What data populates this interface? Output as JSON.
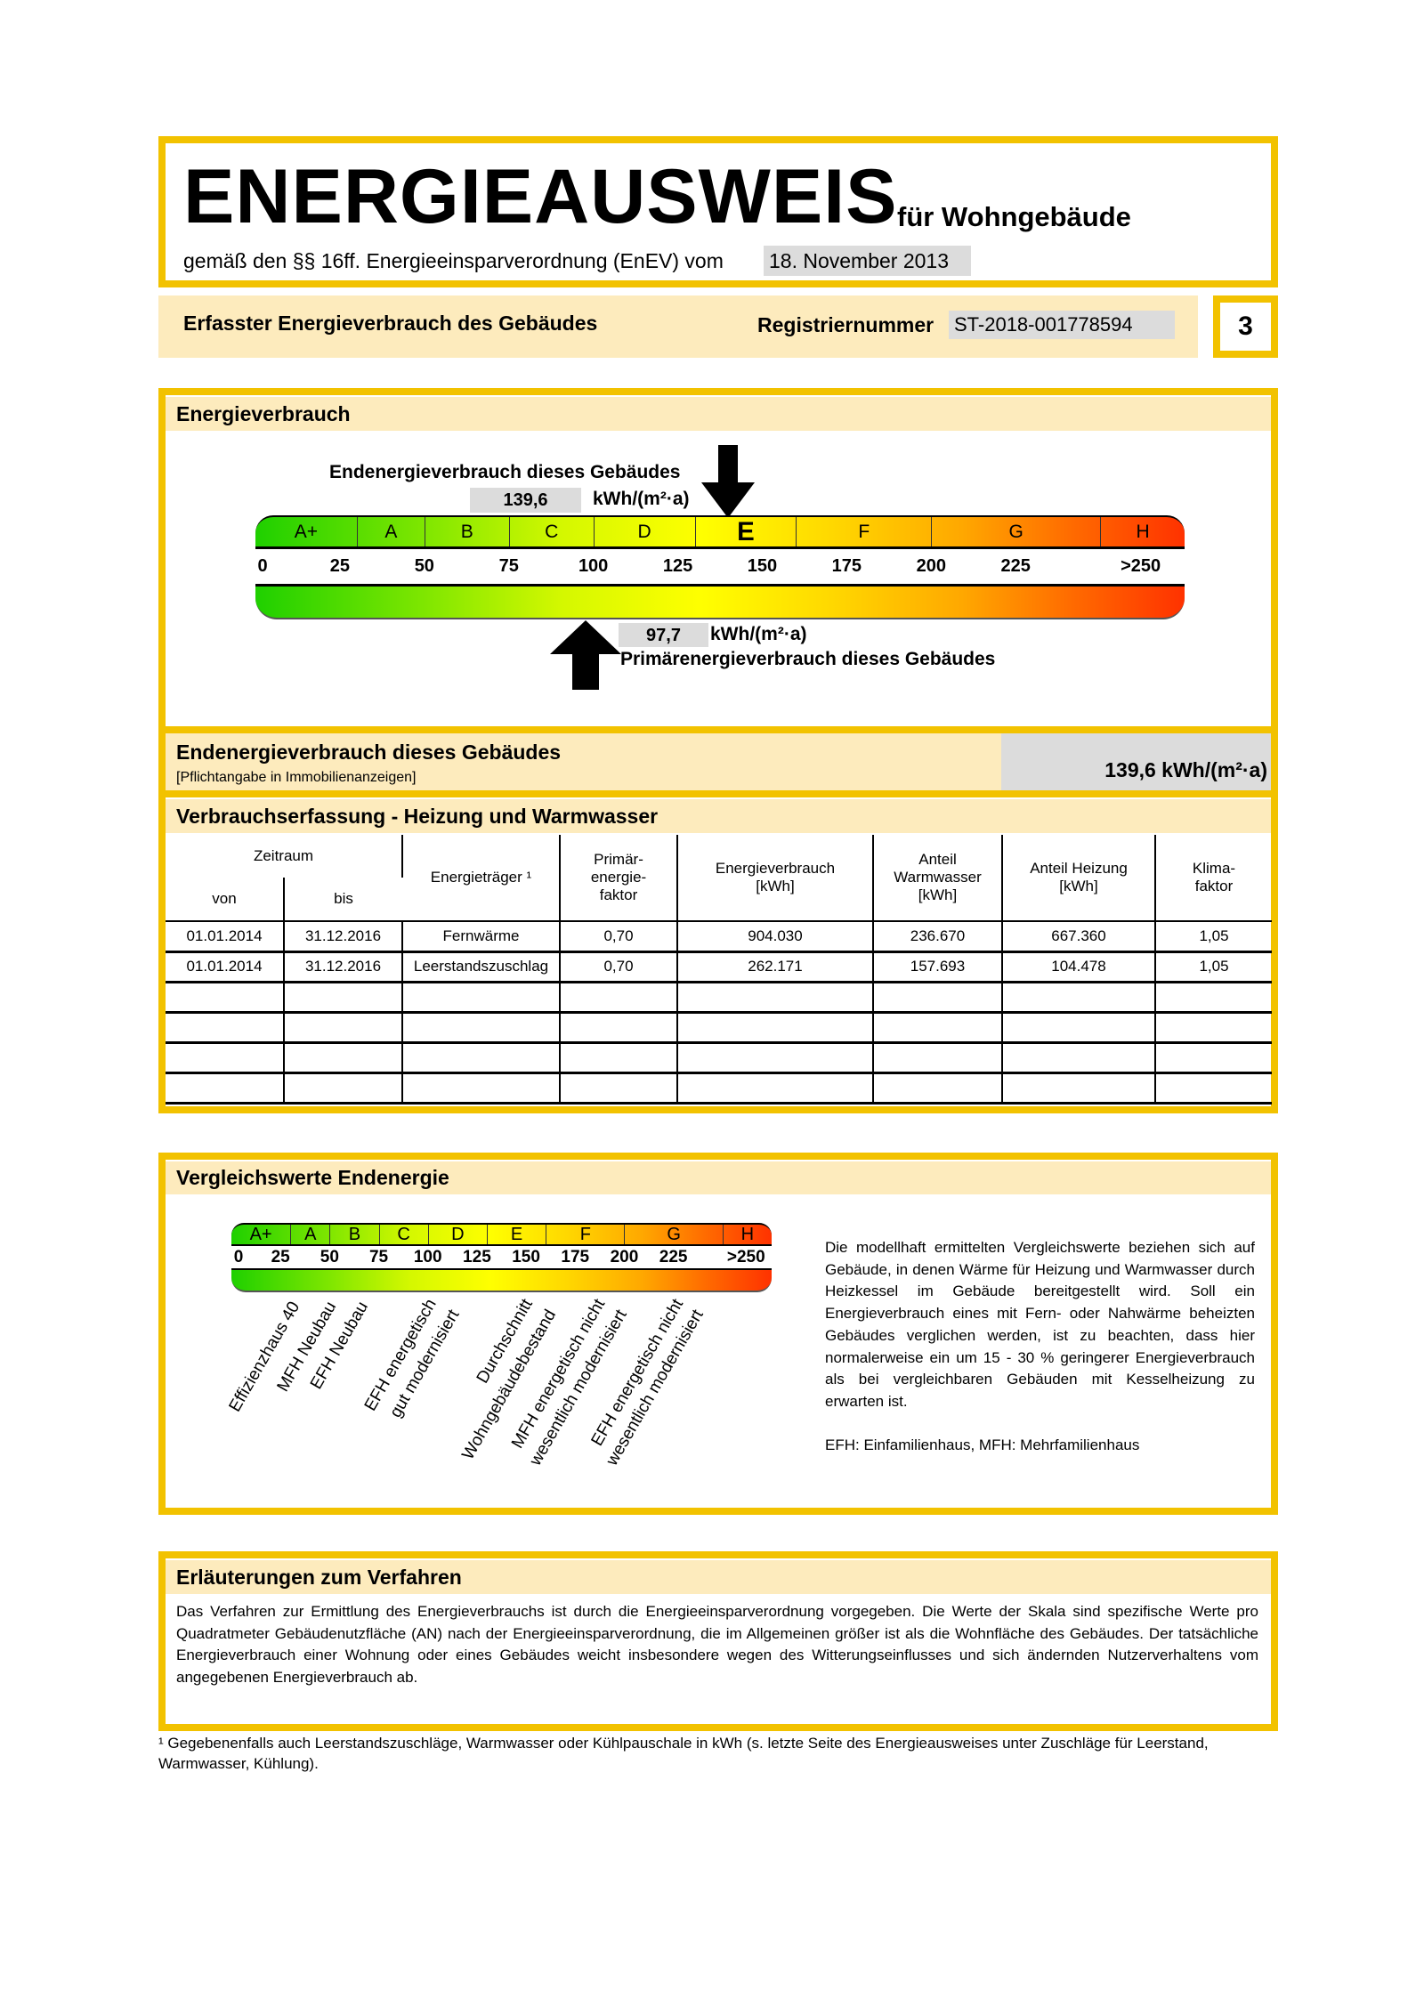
{
  "header": {
    "title": "ENERGIEAUSWEIS",
    "subtitle": "für Wohngebäude",
    "legal": "gemäß den §§ 16ff. Energieeinsparverordnung (EnEV) vom",
    "legal_date": "18. November 2013"
  },
  "subheader": {
    "label": "Erfasster Energieverbrauch des Gebäudes",
    "reg_label": "Registriernummer",
    "reg_number": "ST-2018-001778594",
    "page": "3"
  },
  "energy": {
    "title": "Energieverbrauch",
    "end_label": "Endenergieverbrauch dieses Gebäudes",
    "end_value": "139,6",
    "unit": "kWh/(m²·a)",
    "primary_value": "97,7",
    "primary_label": "Primärenergieverbrauch dieses Gebäudes",
    "end_value_num": 139.6,
    "primary_value_num": 97.7,
    "classes": [
      "A+",
      "A",
      "B",
      "C",
      "D",
      "E",
      "F",
      "G",
      "H"
    ],
    "current_class": "E",
    "ticks": [
      "0",
      "25",
      "50",
      "75",
      "100",
      "125",
      "150",
      "175",
      "200",
      "225",
      ">250"
    ]
  },
  "end_row": {
    "label": "Endenergieverbrauch dieses Gebäudes",
    "note": "[Pflichtangabe in Immobilienanzeigen]",
    "value": "139,6 kWh/(m²·a)"
  },
  "consumption": {
    "title": "Verbrauchserfassung - Heizung und Warmwasser",
    "headers": {
      "zeitraum": "Zeitraum",
      "von": "von",
      "bis": "bis",
      "traeger": "Energieträger ¹",
      "faktor": "Primär-\nenergie-\nfaktor",
      "verbrauch": "Energieverbrauch\n[kWh]",
      "warmwasser": "Anteil\nWarmwasser\n[kWh]",
      "heizung": "Anteil Heizung\n[kWh]",
      "klima": "Klima-\nfaktor"
    },
    "rows": [
      [
        "01.01.2014",
        "31.12.2016",
        "Fernwärme",
        "0,70",
        "904.030",
        "236.670",
        "667.360",
        "1,05"
      ],
      [
        "01.01.2014",
        "31.12.2016",
        "Leerstandszuschlag",
        "0,70",
        "262.171",
        "157.693",
        "104.478",
        "1,05"
      ],
      [
        "",
        "",
        "",
        "",
        "",
        "",
        "",
        ""
      ],
      [
        "",
        "",
        "",
        "",
        "",
        "",
        "",
        ""
      ],
      [
        "",
        "",
        "",
        "",
        "",
        "",
        "",
        ""
      ],
      [
        "",
        "",
        "",
        "",
        "",
        "",
        "",
        ""
      ]
    ]
  },
  "comparison": {
    "title": "Vergleichswerte Endenergie",
    "labels": [
      [
        "Effizienzhaus 40"
      ],
      [
        "MFH Neubau"
      ],
      [
        "EFH Neubau"
      ],
      [
        "EFH energetisch",
        "gut modernisiert"
      ],
      [
        "Durchschnitt",
        "Wohngebäudebestand"
      ],
      [
        "MFH energetisch nicht",
        "wesentlich modernisiert"
      ],
      [
        "EFH energetisch nicht",
        "wesentlich modernisiert"
      ]
    ],
    "text": "Die modellhaft ermittelten Vergleichswerte beziehen sich auf Gebäude, in denen Wärme für Heizung und Warmwasser durch Heizkessel im Gebäude bereitgestellt wird. Soll ein Energieverbrauch eines mit Fern- oder Nahwärme beheizten Gebäudes verglichen werden, ist zu beachten, dass hier normalerweise ein um 15 - 30 % geringerer Energieverbrauch als bei vergleichbaren Gebäuden mit Kesselheizung zu erwarten ist.",
    "abbrev": "EFH: Einfamilienhaus, MFH: Mehrfamilienhaus"
  },
  "explanation": {
    "title": "Erläuterungen zum Verfahren",
    "text": "Das Verfahren zur Ermittlung des Energieverbrauchs ist durch die Energieeinsparverordnung vorgegeben. Die Werte der Skala sind spezifische Werte pro Quadratmeter Gebäudenutzfläche (AN) nach der Energieeinsparverordnung, die im Allgemeinen größer ist als die Wohnfläche des Gebäudes. Der tatsächliche Energieverbrauch einer Wohnung oder eines Gebäudes weicht insbesondere wegen des Witterungseinflusses und sich ändernden Nutzerverhaltens vom angegebenen Energieverbrauch ab."
  },
  "footnote": "¹ Gegebenenfalls auch Leerstandszuschläge, Warmwasser oder Kühlpauschale in kWh (s. letzte Seite des Energieausweises unter Zuschläge für Leerstand, Warmwasser, Kühlung).",
  "colors": {
    "frame": "#f2c200",
    "header_bg": "#fdebbd",
    "value_bg": "#dcdcdc"
  }
}
